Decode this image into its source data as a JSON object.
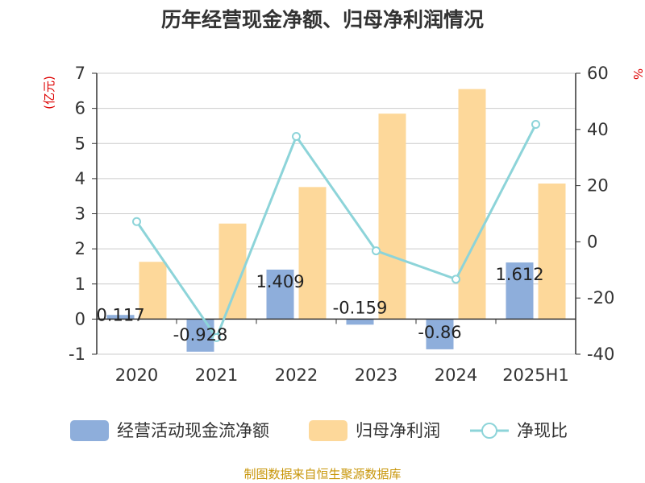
{
  "chart_data": {
    "type": "bar",
    "title": "历年经营现金净额、归母净利润情况",
    "categories": [
      "2020",
      "2021",
      "2022",
      "2023",
      "2024",
      "2025H1"
    ],
    "y_left_label": "(亿元)",
    "y_right_label": "%",
    "y_left": {
      "min": -1,
      "max": 7,
      "ticks": [
        -1,
        0,
        1,
        2,
        3,
        4,
        5,
        6,
        7
      ]
    },
    "y_right": {
      "min": -40,
      "max": 60,
      "ticks": [
        -40,
        -20,
        0,
        20,
        40,
        60
      ]
    },
    "grid": true,
    "legend_position": "bottom",
    "series": [
      {
        "name": "经营活动现金流净额",
        "type": "bar",
        "axis": "left",
        "color": "#8eaedb",
        "values": [
          0.117,
          -0.928,
          1.409,
          -0.159,
          -0.86,
          1.612
        ],
        "labels": [
          "0.117",
          "-0.928",
          "1.409",
          "-0.159",
          "-0.86",
          "1.612"
        ]
      },
      {
        "name": "归母净利润",
        "type": "bar",
        "axis": "left",
        "color": "#fdd89a",
        "values": [
          1.63,
          2.72,
          3.76,
          5.85,
          6.55,
          3.86
        ]
      },
      {
        "name": "净现比",
        "type": "line",
        "axis": "right",
        "color": "#8dd4d9",
        "values": [
          7.2,
          -34.1,
          37.5,
          -3.2,
          -13.3,
          41.8
        ]
      }
    ]
  },
  "source": "制图数据来自恒生聚源数据库"
}
